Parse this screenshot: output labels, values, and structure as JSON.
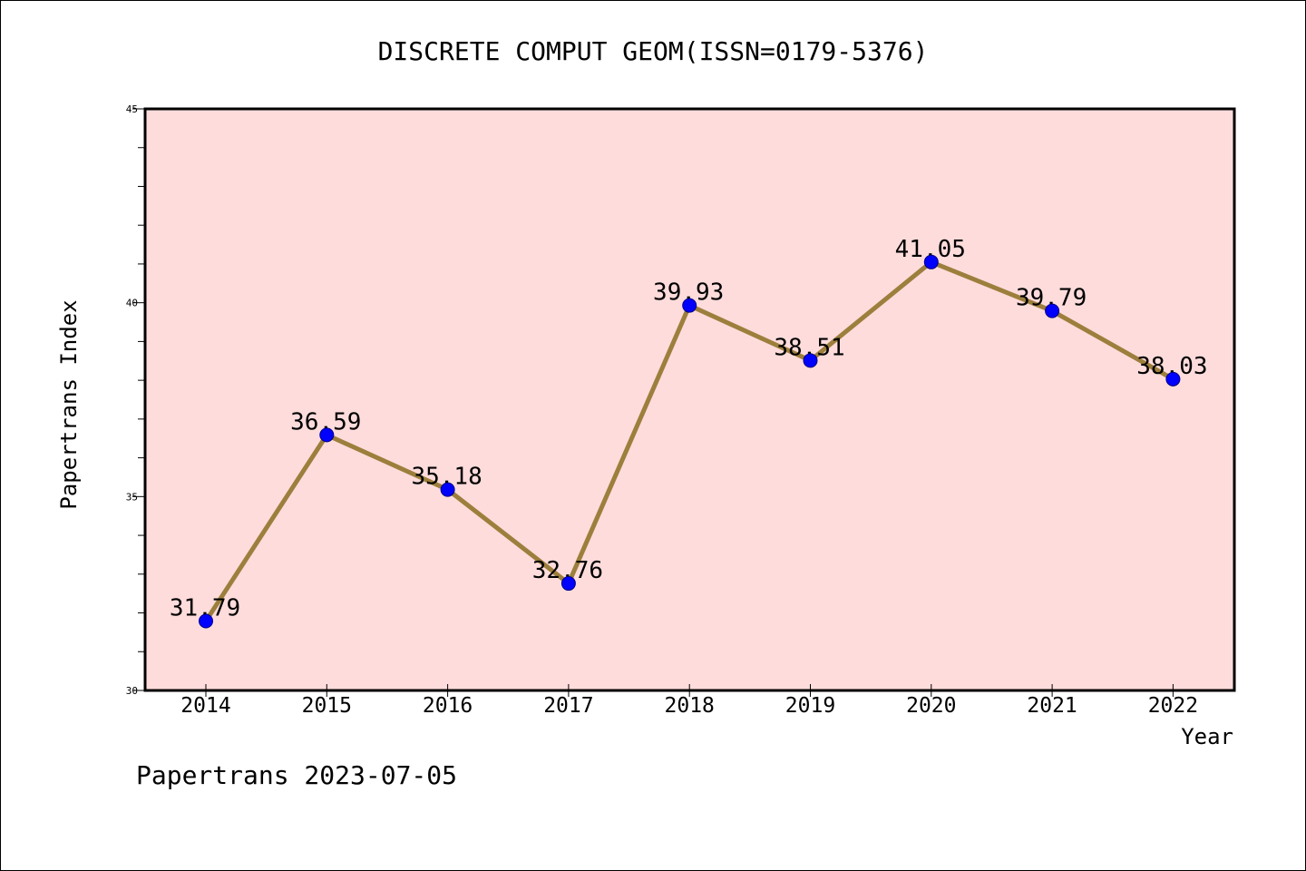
{
  "chart_data": {
    "type": "line",
    "title": "DISCRETE COMPUT GEOM(ISSN=0179-5376)",
    "xlabel": "Year",
    "ylabel": "Papertrans Index",
    "categories": [
      "2014",
      "2015",
      "2016",
      "2017",
      "2018",
      "2019",
      "2020",
      "2021",
      "2022"
    ],
    "series": [
      {
        "values": [
          31.79,
          36.59,
          35.18,
          32.76,
          39.93,
          38.51,
          41.05,
          39.79,
          38.03
        ],
        "labels": [
          "31.79",
          "36.59",
          "35.18",
          "32.76",
          "39.93",
          "38.51",
          "41.05",
          "39.79",
          "38.03"
        ]
      }
    ],
    "ylim": [
      30,
      45
    ],
    "yticks": [
      "30",
      "35",
      "40",
      "45"
    ],
    "grid": false,
    "legend": "none",
    "colors": {
      "plot_background": "#FFDCDC",
      "line": "#9C7F3C",
      "marker": "#0000FF",
      "marker_edge": "#000080"
    }
  },
  "footer": {
    "text": "Papertrans 2023-07-05"
  }
}
